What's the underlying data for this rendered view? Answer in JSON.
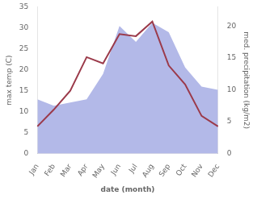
{
  "chart_data": {
    "type": "line",
    "xlabel": "date (month)",
    "ylabel": "max temp (C)",
    "y2label": "med. precipitation (kg/m2)",
    "categories": [
      "Jan",
      "Feb",
      "Mar",
      "Apr",
      "May",
      "Jun",
      "Jul",
      "Aug",
      "Sep",
      "Oct",
      "Nov",
      "Dec"
    ],
    "series": [
      {
        "type": "area",
        "axis": "y2",
        "color": "#b3b9e8",
        "values": [
          8.5,
          7.5,
          8.0,
          8.5,
          12.5,
          20.0,
          17.5,
          20.5,
          19.0,
          13.5,
          10.5,
          10.0
        ]
      },
      {
        "type": "line",
        "axis": "y",
        "color": "#9b3a4a",
        "values": [
          6.5,
          10.5,
          15.0,
          23.0,
          21.5,
          28.5,
          28.0,
          31.5,
          21.0,
          16.5,
          9.0,
          6.5
        ]
      }
    ],
    "ylim": [
      0,
      35
    ],
    "yticks": [
      0,
      5,
      10,
      15,
      20,
      25,
      30,
      35
    ],
    "y2lim": [
      0,
      23.0
    ],
    "y2ticks": [
      0,
      5,
      10,
      15,
      20
    ],
    "grid": false
  }
}
